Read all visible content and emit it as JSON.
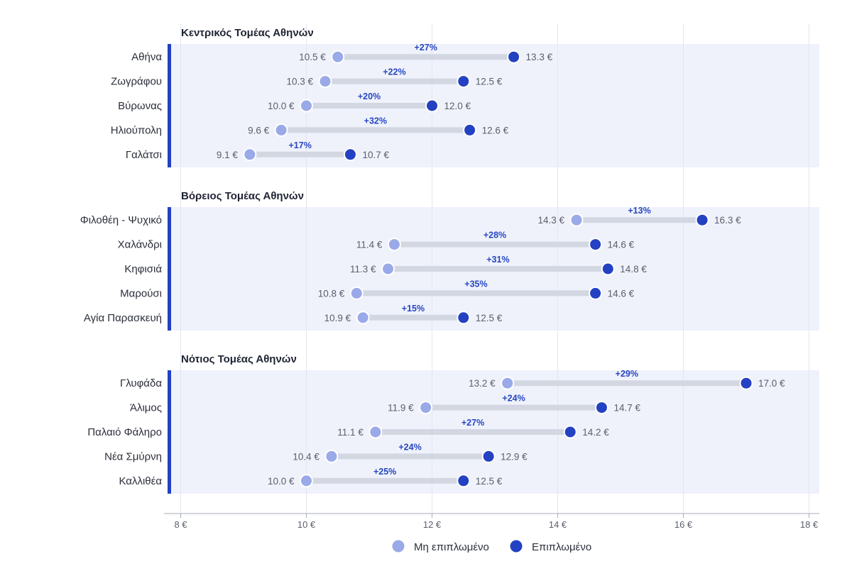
{
  "chart_data": {
    "type": "dumbbell",
    "x_ticks": [
      "8 €",
      "10 €",
      "12 €",
      "14 €",
      "16 €",
      "18 €"
    ],
    "xlim": [
      8,
      18
    ],
    "grid": true,
    "legend_position": "bottom",
    "series": [
      {
        "name": "Μη επιπλωμένο",
        "color": "#9aa9e8"
      },
      {
        "name": "Επιπλωμένο",
        "color": "#2341c2"
      }
    ],
    "groups": [
      {
        "title": "Κεντρικός Τομέας Αθηνών",
        "rows": [
          {
            "label": "Αθήνα",
            "unfurnished": 10.5,
            "furnished": 13.3,
            "unfurnished_label": "10.5 €",
            "furnished_label": "13.3 €",
            "pct": "+27%"
          },
          {
            "label": "Ζωγράφου",
            "unfurnished": 10.3,
            "furnished": 12.5,
            "unfurnished_label": "10.3 €",
            "furnished_label": "12.5 €",
            "pct": "+22%"
          },
          {
            "label": "Βύρωνας",
            "unfurnished": 10.0,
            "furnished": 12.0,
            "unfurnished_label": "10.0 €",
            "furnished_label": "12.0 €",
            "pct": "+20%"
          },
          {
            "label": "Ηλιούπολη",
            "unfurnished": 9.6,
            "furnished": 12.6,
            "unfurnished_label": "9.6 €",
            "furnished_label": "12.6 €",
            "pct": "+32%"
          },
          {
            "label": "Γαλάτσι",
            "unfurnished": 9.1,
            "furnished": 10.7,
            "unfurnished_label": "9.1 €",
            "furnished_label": "10.7 €",
            "pct": "+17%"
          }
        ]
      },
      {
        "title": "Βόρειος Τομέας Αθηνών",
        "rows": [
          {
            "label": "Φιλοθέη - Ψυχικό",
            "unfurnished": 14.3,
            "furnished": 16.3,
            "unfurnished_label": "14.3 €",
            "furnished_label": "16.3 €",
            "pct": "+13%"
          },
          {
            "label": "Χαλάνδρι",
            "unfurnished": 11.4,
            "furnished": 14.6,
            "unfurnished_label": "11.4 €",
            "furnished_label": "14.6 €",
            "pct": "+28%"
          },
          {
            "label": "Κηφισιά",
            "unfurnished": 11.3,
            "furnished": 14.8,
            "unfurnished_label": "11.3 €",
            "furnished_label": "14.8 €",
            "pct": "+31%"
          },
          {
            "label": "Μαρούσι",
            "unfurnished": 10.8,
            "furnished": 14.6,
            "unfurnished_label": "10.8 €",
            "furnished_label": "14.6 €",
            "pct": "+35%"
          },
          {
            "label": "Αγία Παρασκευή",
            "unfurnished": 10.9,
            "furnished": 12.5,
            "unfurnished_label": "10.9 €",
            "furnished_label": "12.5 €",
            "pct": "+15%"
          }
        ]
      },
      {
        "title": "Νότιος Τομέας Αθηνών",
        "rows": [
          {
            "label": "Γλυφάδα",
            "unfurnished": 13.2,
            "furnished": 17.0,
            "unfurnished_label": "13.2 €",
            "furnished_label": "17.0 €",
            "pct": "+29%"
          },
          {
            "label": "Άλιμος",
            "unfurnished": 11.9,
            "furnished": 14.7,
            "unfurnished_label": "11.9 €",
            "furnished_label": "14.7 €",
            "pct": "+24%"
          },
          {
            "label": "Παλαιό Φάληρο",
            "unfurnished": 11.1,
            "furnished": 14.2,
            "unfurnished_label": "11.1 €",
            "furnished_label": "14.2 €",
            "pct": "+27%"
          },
          {
            "label": "Νέα Σμύρνη",
            "unfurnished": 10.4,
            "furnished": 12.9,
            "unfurnished_label": "10.4 €",
            "furnished_label": "12.9 €",
            "pct": "+24%"
          },
          {
            "label": "Καλλιθέα",
            "unfurnished": 10.0,
            "furnished": 12.5,
            "unfurnished_label": "10.0 €",
            "furnished_label": "12.5 €",
            "pct": "+25%"
          }
        ]
      }
    ]
  }
}
